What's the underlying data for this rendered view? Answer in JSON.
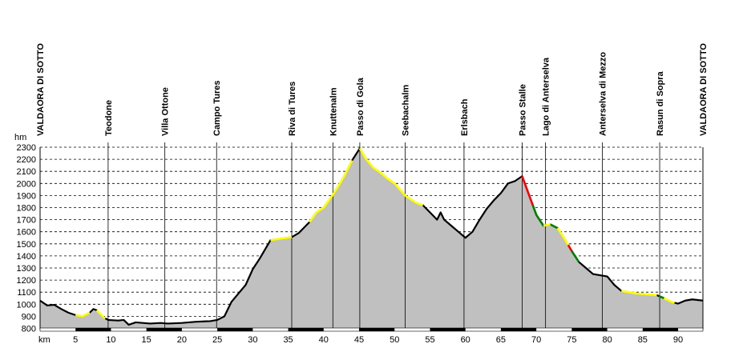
{
  "chart_data": {
    "type": "area",
    "title": "",
    "ylabel": "hm",
    "xlabel": "km",
    "xlim": [
      0,
      93.5
    ],
    "ylim": [
      790,
      2300
    ],
    "y_ticks": [
      800,
      900,
      1000,
      1100,
      1200,
      1300,
      1400,
      1500,
      1600,
      1700,
      1800,
      1900,
      2000,
      2100,
      2200,
      2300
    ],
    "x_ticks": [
      5,
      10,
      15,
      20,
      25,
      30,
      35,
      40,
      45,
      50,
      55,
      60,
      65,
      70,
      75,
      80,
      85,
      90
    ],
    "grid": "horizontal dashed",
    "fill_color": "#c0c0c0",
    "line_color": "#000000",
    "waypoints": [
      {
        "name": "VALDAORA DI SOTTO",
        "km": 0
      },
      {
        "name": "Teodone",
        "km": 9.6
      },
      {
        "name": "Villa Ottone",
        "km": 17.6
      },
      {
        "name": "Campo Tures",
        "km": 24.9
      },
      {
        "name": "Riva di Tures",
        "km": 35.5
      },
      {
        "name": "Knuttenalm",
        "km": 41.3
      },
      {
        "name": "Passo di Gola",
        "km": 45.1
      },
      {
        "name": "Seebachalm",
        "km": 51.5
      },
      {
        "name": "Erlsbach",
        "km": 59.8
      },
      {
        "name": "Passo Stalle",
        "km": 68.0
      },
      {
        "name": "Lago di Anterselva",
        "km": 71.3
      },
      {
        "name": "Anterselva di Mezzo",
        "km": 79.3
      },
      {
        "name": "Rasun di Sopra",
        "km": 87.4
      },
      {
        "name": "VALDAORA DI SOTTO",
        "km": 93.5
      }
    ],
    "profile": [
      [
        0,
        1030
      ],
      [
        1,
        990
      ],
      [
        2,
        995
      ],
      [
        3,
        960
      ],
      [
        4,
        930
      ],
      [
        5,
        910
      ],
      [
        6,
        900
      ],
      [
        7,
        930
      ],
      [
        7.5,
        960
      ],
      [
        8,
        950
      ],
      [
        9,
        890
      ],
      [
        9.6,
        870
      ],
      [
        11,
        865
      ],
      [
        11.8,
        870
      ],
      [
        12.5,
        830
      ],
      [
        13.5,
        850
      ],
      [
        14.5,
        845
      ],
      [
        15.5,
        840
      ],
      [
        17,
        845
      ],
      [
        18,
        840
      ],
      [
        20,
        845
      ],
      [
        21,
        850
      ],
      [
        22,
        855
      ],
      [
        24,
        860
      ],
      [
        25,
        870
      ],
      [
        26,
        900
      ],
      [
        27,
        1020
      ],
      [
        28,
        1090
      ],
      [
        29,
        1160
      ],
      [
        30,
        1290
      ],
      [
        31,
        1380
      ],
      [
        32,
        1480
      ],
      [
        32.5,
        1530
      ],
      [
        35.5,
        1555
      ],
      [
        36.5,
        1590
      ],
      [
        38,
        1680
      ],
      [
        39,
        1760
      ],
      [
        40,
        1800
      ],
      [
        41,
        1880
      ],
      [
        42,
        1970
      ],
      [
        43,
        2070
      ],
      [
        44,
        2190
      ],
      [
        45.1,
        2290
      ],
      [
        46,
        2200
      ],
      [
        47,
        2130
      ],
      [
        48,
        2090
      ],
      [
        49,
        2040
      ],
      [
        50,
        2000
      ],
      [
        51.5,
        1900
      ],
      [
        53,
        1840
      ],
      [
        54,
        1820
      ],
      [
        55,
        1760
      ],
      [
        56,
        1700
      ],
      [
        56.5,
        1760
      ],
      [
        57,
        1700
      ],
      [
        58,
        1650
      ],
      [
        59,
        1600
      ],
      [
        60,
        1550
      ],
      [
        61,
        1600
      ],
      [
        62,
        1700
      ],
      [
        63,
        1790
      ],
      [
        64,
        1860
      ],
      [
        65,
        1920
      ],
      [
        66,
        2000
      ],
      [
        67,
        2020
      ],
      [
        68,
        2060
      ],
      [
        69,
        1900
      ],
      [
        70,
        1740
      ],
      [
        71,
        1650
      ],
      [
        72,
        1660
      ],
      [
        73,
        1630
      ],
      [
        74,
        1540
      ],
      [
        75,
        1440
      ],
      [
        76,
        1350
      ],
      [
        77,
        1300
      ],
      [
        78,
        1250
      ],
      [
        79,
        1240
      ],
      [
        80,
        1230
      ],
      [
        81,
        1160
      ],
      [
        82,
        1110
      ],
      [
        83,
        1100
      ],
      [
        84,
        1090
      ],
      [
        85,
        1085
      ],
      [
        86,
        1080
      ],
      [
        87,
        1075
      ],
      [
        88,
        1050
      ],
      [
        89,
        1020
      ],
      [
        90,
        1005
      ],
      [
        91,
        1030
      ],
      [
        92,
        1040
      ],
      [
        93.5,
        1030
      ]
    ],
    "highlights": [
      {
        "color": "#ffff00",
        "km": [
          5,
          7
        ]
      },
      {
        "color": "#ffff00",
        "km": [
          8,
          9.2
        ]
      },
      {
        "color": "#ffff00",
        "km": [
          32.5,
          35.5
        ]
      },
      {
        "color": "#ffff00",
        "km": [
          38,
          44
        ]
      },
      {
        "color": "#ffff00",
        "km": [
          45.1,
          54
        ]
      },
      {
        "color": "#ff0000",
        "km": [
          68,
          69.5
        ]
      },
      {
        "color": "#008000",
        "km": [
          69.5,
          71
        ]
      },
      {
        "color": "#ffff00",
        "km": [
          71,
          72
        ]
      },
      {
        "color": "#008000",
        "km": [
          72,
          73
        ]
      },
      {
        "color": "#ffff00",
        "km": [
          73,
          74.5
        ]
      },
      {
        "color": "#ff0000",
        "km": [
          74.5,
          75
        ]
      },
      {
        "color": "#008000",
        "km": [
          75,
          76
        ]
      },
      {
        "color": "#ffff00",
        "km": [
          82,
          87
        ]
      },
      {
        "color": "#008000",
        "km": [
          87.3,
          88
        ]
      },
      {
        "color": "#ffff00",
        "km": [
          88,
          89.5
        ]
      }
    ],
    "distance_bar_segments": [
      [
        5,
        10
      ],
      [
        15,
        20
      ],
      [
        25,
        30
      ],
      [
        35,
        40
      ],
      [
        45,
        50
      ],
      [
        55,
        60
      ],
      [
        65,
        70
      ],
      [
        75,
        80
      ],
      [
        85,
        90
      ]
    ]
  }
}
